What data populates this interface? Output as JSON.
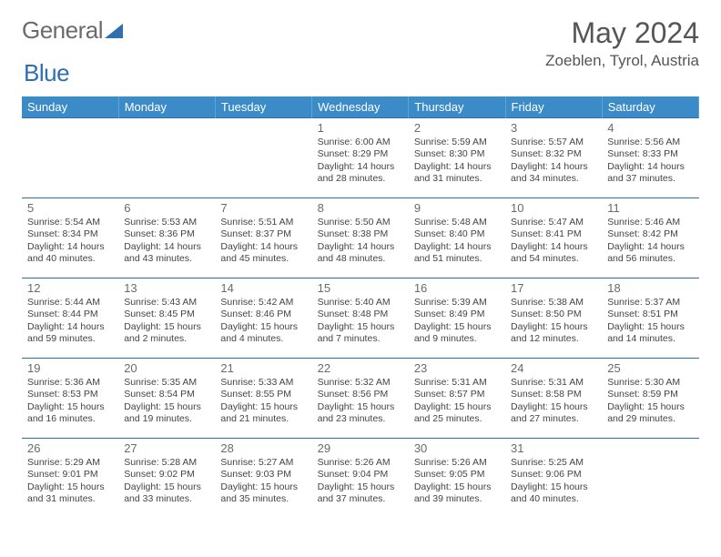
{
  "brand": {
    "part1": "General",
    "part2": "Blue"
  },
  "header": {
    "month_title": "May 2024",
    "location": "Zoeblen, Tyrol, Austria"
  },
  "colors": {
    "accent": "#3b8bc9",
    "rule": "#2f6fb0",
    "text": "#444"
  },
  "daynames": [
    "Sunday",
    "Monday",
    "Tuesday",
    "Wednesday",
    "Thursday",
    "Friday",
    "Saturday"
  ],
  "weeks": [
    [
      null,
      null,
      null,
      {
        "n": "1",
        "sr": "6:00 AM",
        "ss": "8:29 PM",
        "dl": "14 hours and 28 minutes."
      },
      {
        "n": "2",
        "sr": "5:59 AM",
        "ss": "8:30 PM",
        "dl": "14 hours and 31 minutes."
      },
      {
        "n": "3",
        "sr": "5:57 AM",
        "ss": "8:32 PM",
        "dl": "14 hours and 34 minutes."
      },
      {
        "n": "4",
        "sr": "5:56 AM",
        "ss": "8:33 PM",
        "dl": "14 hours and 37 minutes."
      }
    ],
    [
      {
        "n": "5",
        "sr": "5:54 AM",
        "ss": "8:34 PM",
        "dl": "14 hours and 40 minutes."
      },
      {
        "n": "6",
        "sr": "5:53 AM",
        "ss": "8:36 PM",
        "dl": "14 hours and 43 minutes."
      },
      {
        "n": "7",
        "sr": "5:51 AM",
        "ss": "8:37 PM",
        "dl": "14 hours and 45 minutes."
      },
      {
        "n": "8",
        "sr": "5:50 AM",
        "ss": "8:38 PM",
        "dl": "14 hours and 48 minutes."
      },
      {
        "n": "9",
        "sr": "5:48 AM",
        "ss": "8:40 PM",
        "dl": "14 hours and 51 minutes."
      },
      {
        "n": "10",
        "sr": "5:47 AM",
        "ss": "8:41 PM",
        "dl": "14 hours and 54 minutes."
      },
      {
        "n": "11",
        "sr": "5:46 AM",
        "ss": "8:42 PM",
        "dl": "14 hours and 56 minutes."
      }
    ],
    [
      {
        "n": "12",
        "sr": "5:44 AM",
        "ss": "8:44 PM",
        "dl": "14 hours and 59 minutes."
      },
      {
        "n": "13",
        "sr": "5:43 AM",
        "ss": "8:45 PM",
        "dl": "15 hours and 2 minutes."
      },
      {
        "n": "14",
        "sr": "5:42 AM",
        "ss": "8:46 PM",
        "dl": "15 hours and 4 minutes."
      },
      {
        "n": "15",
        "sr": "5:40 AM",
        "ss": "8:48 PM",
        "dl": "15 hours and 7 minutes."
      },
      {
        "n": "16",
        "sr": "5:39 AM",
        "ss": "8:49 PM",
        "dl": "15 hours and 9 minutes."
      },
      {
        "n": "17",
        "sr": "5:38 AM",
        "ss": "8:50 PM",
        "dl": "15 hours and 12 minutes."
      },
      {
        "n": "18",
        "sr": "5:37 AM",
        "ss": "8:51 PM",
        "dl": "15 hours and 14 minutes."
      }
    ],
    [
      {
        "n": "19",
        "sr": "5:36 AM",
        "ss": "8:53 PM",
        "dl": "15 hours and 16 minutes."
      },
      {
        "n": "20",
        "sr": "5:35 AM",
        "ss": "8:54 PM",
        "dl": "15 hours and 19 minutes."
      },
      {
        "n": "21",
        "sr": "5:33 AM",
        "ss": "8:55 PM",
        "dl": "15 hours and 21 minutes."
      },
      {
        "n": "22",
        "sr": "5:32 AM",
        "ss": "8:56 PM",
        "dl": "15 hours and 23 minutes."
      },
      {
        "n": "23",
        "sr": "5:31 AM",
        "ss": "8:57 PM",
        "dl": "15 hours and 25 minutes."
      },
      {
        "n": "24",
        "sr": "5:31 AM",
        "ss": "8:58 PM",
        "dl": "15 hours and 27 minutes."
      },
      {
        "n": "25",
        "sr": "5:30 AM",
        "ss": "8:59 PM",
        "dl": "15 hours and 29 minutes."
      }
    ],
    [
      {
        "n": "26",
        "sr": "5:29 AM",
        "ss": "9:01 PM",
        "dl": "15 hours and 31 minutes."
      },
      {
        "n": "27",
        "sr": "5:28 AM",
        "ss": "9:02 PM",
        "dl": "15 hours and 33 minutes."
      },
      {
        "n": "28",
        "sr": "5:27 AM",
        "ss": "9:03 PM",
        "dl": "15 hours and 35 minutes."
      },
      {
        "n": "29",
        "sr": "5:26 AM",
        "ss": "9:04 PM",
        "dl": "15 hours and 37 minutes."
      },
      {
        "n": "30",
        "sr": "5:26 AM",
        "ss": "9:05 PM",
        "dl": "15 hours and 39 minutes."
      },
      {
        "n": "31",
        "sr": "5:25 AM",
        "ss": "9:06 PM",
        "dl": "15 hours and 40 minutes."
      },
      null
    ]
  ],
  "labels": {
    "sunrise": "Sunrise: ",
    "sunset": "Sunset: ",
    "daylight": "Daylight: "
  }
}
